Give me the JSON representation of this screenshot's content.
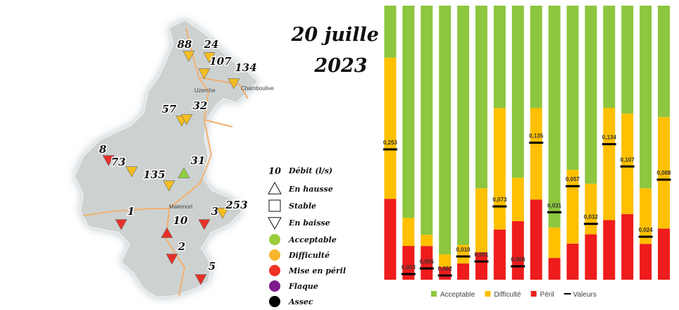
{
  "title": {
    "line1": "20 juillet",
    "line2": "2023"
  },
  "map": {
    "places": [
      "Uzerche",
      "Chamboulive",
      "Malemort"
    ],
    "stations": [
      {
        "value": 88,
        "trend": "down",
        "color": "#f5bd1f"
      },
      {
        "value": 24,
        "trend": "down",
        "color": "#f5bd1f"
      },
      {
        "value": 107,
        "trend": "down",
        "color": "#f5bd1f"
      },
      {
        "value": 134,
        "trend": "down",
        "color": "#f5bd1f"
      },
      {
        "value": 57,
        "trend": "down",
        "color": "#f5bd1f"
      },
      {
        "value": 32,
        "trend": "down",
        "color": "#f5bd1f"
      },
      {
        "value": 8,
        "trend": "down",
        "color": "#e8302a"
      },
      {
        "value": 73,
        "trend": "down",
        "color": "#f5bd1f"
      },
      {
        "value": 135,
        "trend": "down",
        "color": "#f5bd1f"
      },
      {
        "value": 31,
        "trend": "up",
        "color": "#8ed13c"
      },
      {
        "value": 1,
        "trend": "down",
        "color": "#e8302a"
      },
      {
        "value": 10,
        "trend": "up",
        "color": "#e8302a"
      },
      {
        "value": 3,
        "trend": "down",
        "color": "#e8302a"
      },
      {
        "value": 253,
        "trend": "down",
        "color": "#f5bd1f"
      },
      {
        "value": 2,
        "trend": "down",
        "color": "#e8302a"
      },
      {
        "value": 5,
        "trend": "down",
        "color": "#e8302a"
      }
    ]
  },
  "legend": {
    "flow_example": 10,
    "flow_label": "Débit (l/s)",
    "trends": [
      {
        "label": "En hausse",
        "shape": "up"
      },
      {
        "label": "Stable",
        "shape": "square"
      },
      {
        "label": "En baisse",
        "shape": "down"
      }
    ],
    "states": [
      {
        "label": "Acceptable",
        "color": "#9acd3c"
      },
      {
        "label": "Difficulté",
        "color": "#f7b52b"
      },
      {
        "label": "Mise en péril",
        "color": "#ef3224"
      },
      {
        "label": "Flaque",
        "color": "#7d1a8c"
      },
      {
        "label": "Assec",
        "color": "#000000"
      }
    ]
  },
  "chart_data": {
    "type": "bar",
    "stacked": true,
    "categories": [
      null,
      null,
      null,
      null,
      null,
      null,
      null,
      null,
      null,
      null,
      null,
      null,
      null,
      null,
      null,
      null
    ],
    "series": [
      {
        "name": "Acceptable",
        "color": "#8dc63f",
        "values": [
          0.101,
          0.113,
          0.102,
          0.118,
          0.103,
          0.01,
          0.102,
          0.103,
          0.101,
          0.102,
          0.1,
          0.102,
          0.101,
          0.102,
          0.102,
          0.098
        ]
      },
      {
        "name": "Difficulté",
        "color": "#ffc000",
        "values": [
          0.274,
          0.015,
          0.005,
          0.006,
          0.008,
          0.0035,
          0.121,
          0.026,
          0.09,
          0.014,
          0.045,
          0.029,
          0.111,
          0.095,
          0.031,
          0.098
        ]
      },
      {
        "name": "Péril",
        "color": "#ee1c1c",
        "values": [
          0.157,
          0.018,
          0.015,
          0.006,
          0.007,
          0.0015,
          0.05,
          0.035,
          0.079,
          0.01,
          0.022,
          0.026,
          0.059,
          0.062,
          0.02,
          0.045
        ]
      },
      {
        "name": "Valeurs",
        "color": "#000000",
        "marker": "dash",
        "values": [
          0.253,
          0.003,
          0.005,
          0.002,
          0.01,
          0.001,
          0.073,
          0.008,
          0.135,
          0.031,
          0.057,
          0.032,
          0.134,
          0.107,
          0.024,
          0.088
        ],
        "value_labels": [
          "0,253",
          "0,003",
          "0,005",
          "0,002",
          "0,010",
          "0,001",
          "0,073",
          "0,008",
          "0,135",
          "0,031",
          "0,057",
          "0,032",
          "0,134",
          "0,107",
          "0,024",
          "0,088"
        ]
      }
    ],
    "stack_order": [
      "Péril",
      "Difficulté",
      "Acceptable"
    ],
    "legend": "bottom"
  }
}
